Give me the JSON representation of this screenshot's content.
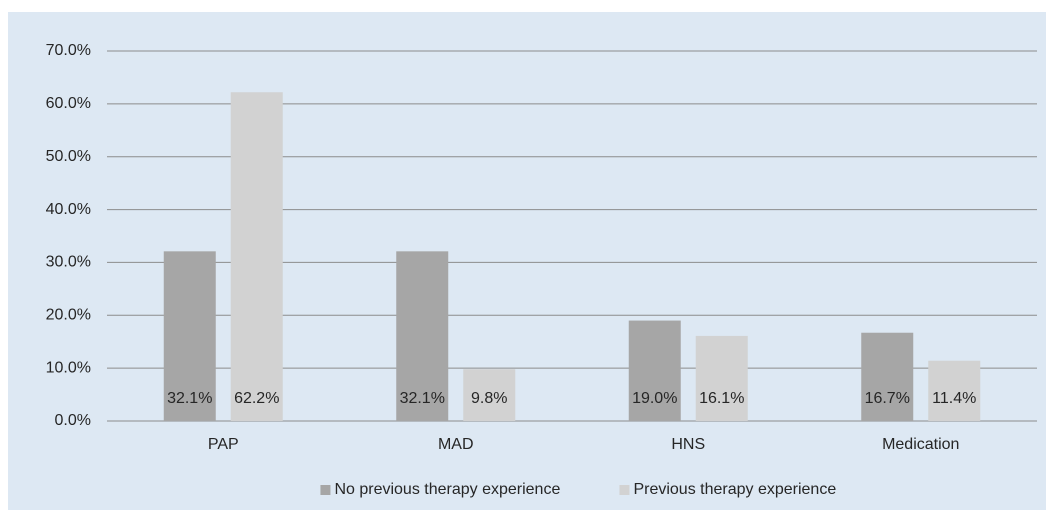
{
  "chart_data": {
    "type": "bar",
    "categories": [
      "PAP",
      "MAD",
      "HNS",
      "Medication"
    ],
    "series": [
      {
        "name": "No previous therapy experience",
        "color": "#a6a6a6",
        "values": [
          32.1,
          32.1,
          19.0,
          16.7
        ],
        "value_labels": [
          "32.1%",
          "32.1%",
          "19.0%",
          "16.7%"
        ]
      },
      {
        "name": "Previous therapy experience",
        "color": "#d2d2d2",
        "values": [
          62.2,
          9.8,
          16.1,
          11.4
        ],
        "value_labels": [
          "62.2%",
          "9.8%",
          "16.1%",
          "11.4%"
        ]
      }
    ],
    "ylim": [
      0,
      70
    ],
    "yticks": [
      {
        "value": 0,
        "label": "0.0%"
      },
      {
        "value": 10,
        "label": "10.0%"
      },
      {
        "value": 20,
        "label": "20.0%"
      },
      {
        "value": 30,
        "label": "30.0%"
      },
      {
        "value": 40,
        "label": "40.0%"
      },
      {
        "value": 50,
        "label": "50.0%"
      },
      {
        "value": 60,
        "label": "60.0%"
      },
      {
        "value": 70,
        "label": "70.0%"
      }
    ],
    "grid": true,
    "legend": "bottom"
  }
}
